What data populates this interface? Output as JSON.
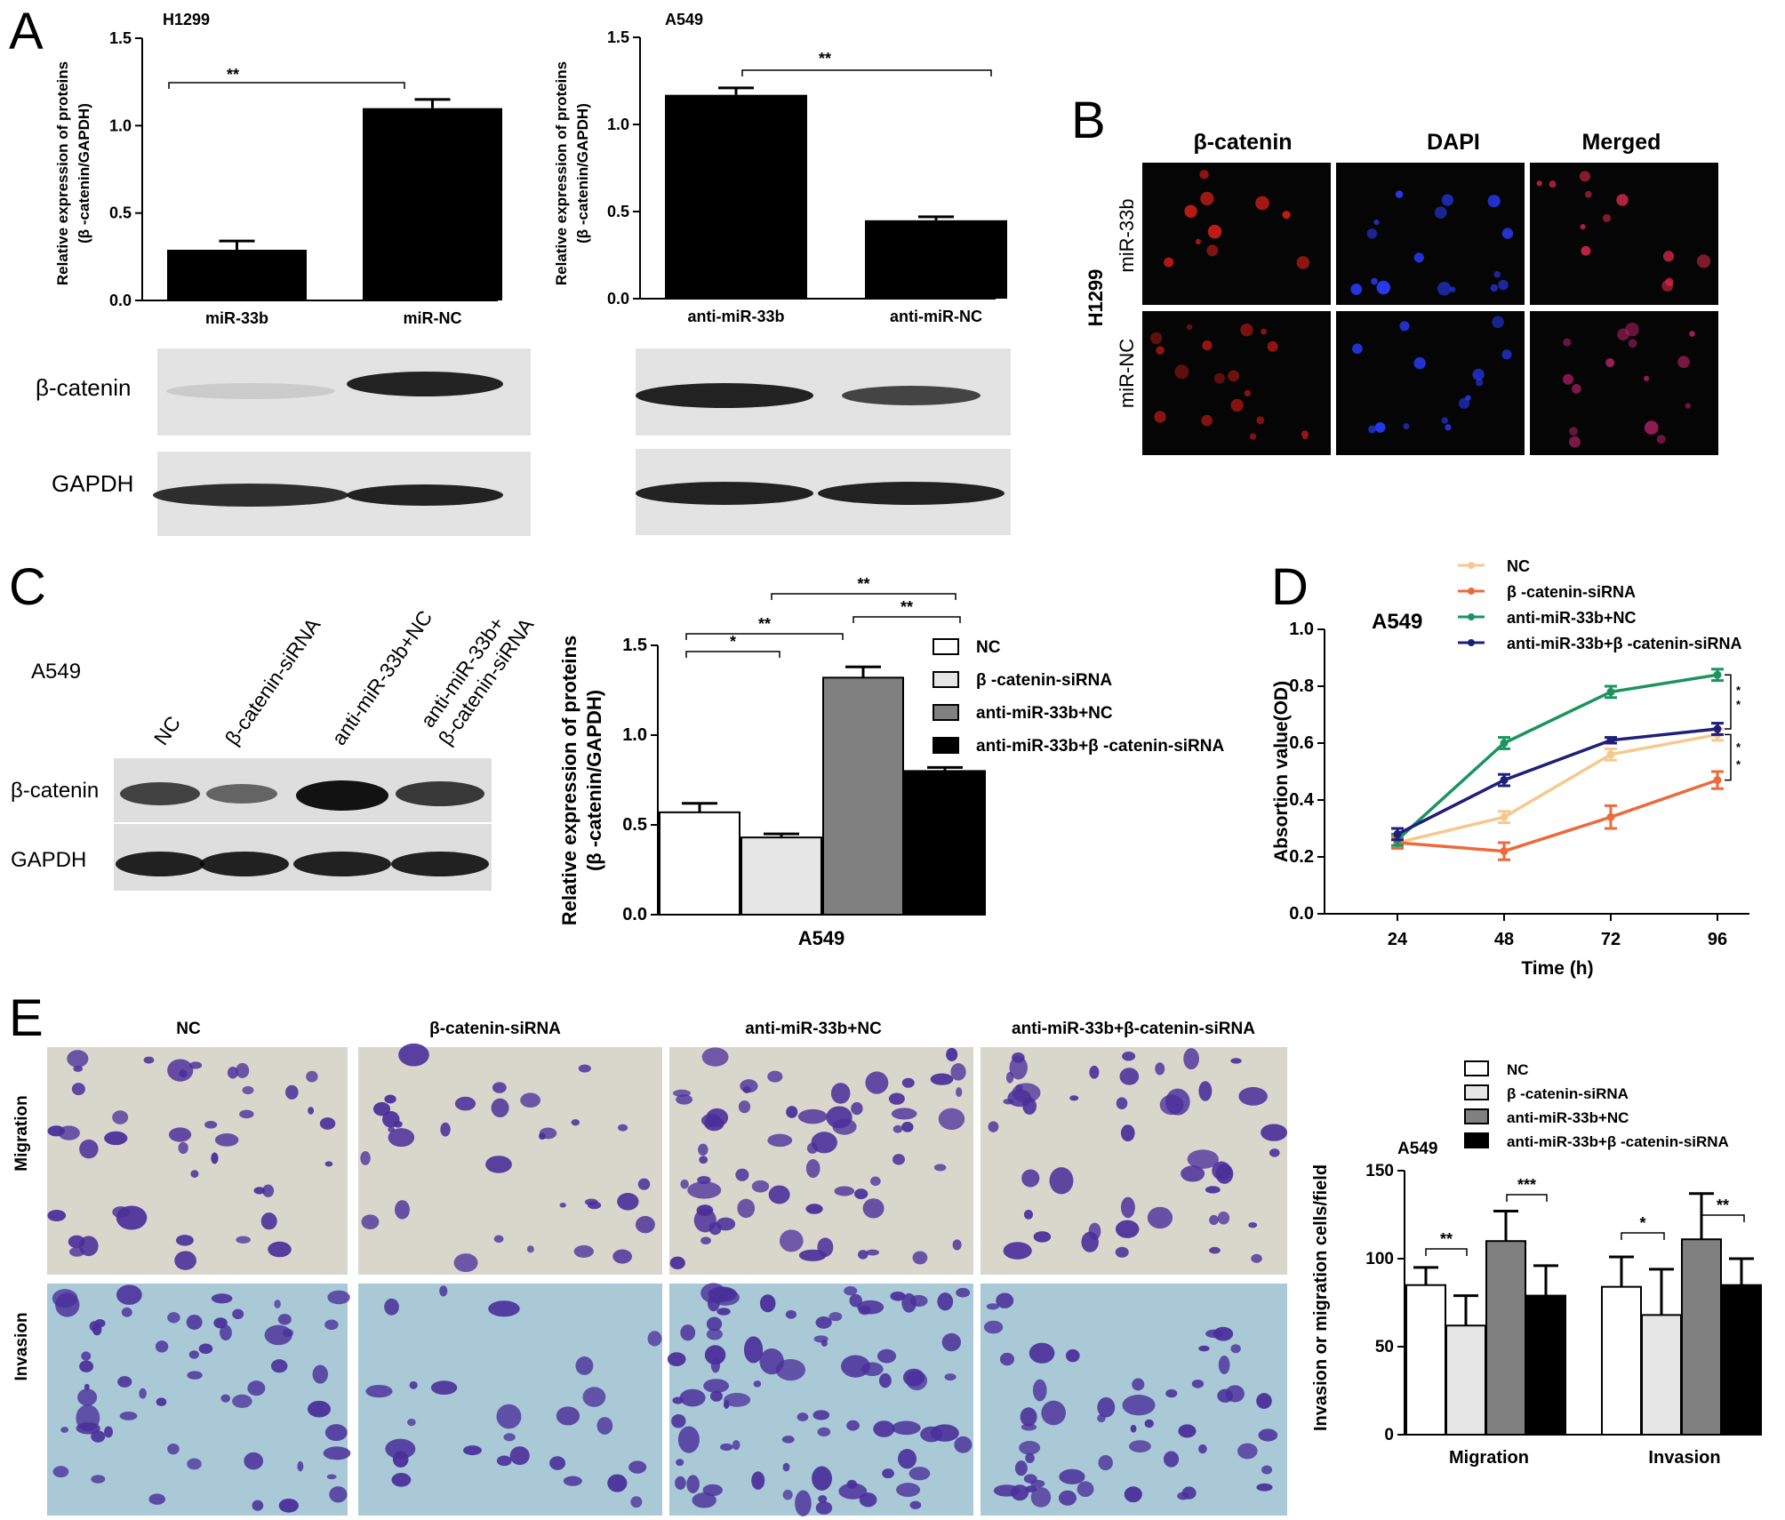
{
  "panels": {
    "A": "A",
    "B": "B",
    "C": "C",
    "D": "D",
    "E": "E"
  },
  "panel_a": {
    "h1299": {
      "cell_line": "H1299",
      "ylabel_1": "Relative expression of proteins",
      "ylabel_2": "(β -catenin/GAPDH)",
      "sig": "**",
      "blot_labels": [
        "β-catenin",
        "GAPDH"
      ]
    },
    "a549": {
      "cell_line": "A549",
      "ylabel_1": "Relative expression of proteins",
      "ylabel_2": "(β -catenin/GAPDH)",
      "sig": "**"
    }
  },
  "panel_b": {
    "cols": [
      "β-catenin",
      "DAPI",
      "Merged"
    ],
    "cell_line": "H1299",
    "rows": [
      "miR-33b",
      "miR-NC"
    ]
  },
  "panel_c": {
    "cell_line": "A549",
    "lanes": [
      "NC",
      "β-catenin-siRNA",
      "anti-miR-33b+NC",
      "anti-miR-33b+",
      "β-catenin-siRNA"
    ],
    "blot_labels": [
      "β-catenin",
      "GAPDH"
    ]
  },
  "panel_d": {
    "cell_line": "A549"
  },
  "panel_e": {
    "cols": [
      "NC",
      "β-catenin-siRNA",
      "anti-miR-33b+NC",
      "anti-miR-33b+β-catenin-siRNA"
    ],
    "rows": [
      "Migration",
      "Invasion"
    ],
    "cell_line": "A549"
  },
  "colors": {
    "white_bar": "#ffffff",
    "light_bar": "#e6e6e6",
    "grey_bar": "#808080",
    "black_bar": "#000000",
    "nc_line": "#f5c98e",
    "sirna_line": "#ec6a3c",
    "anti_nc_line": "#1b9460",
    "anti_sirna_line": "#1f1f7a"
  },
  "chart_data": [
    {
      "id": "a_h1299",
      "type": "bar",
      "title": "H1299",
      "categories": [
        "miR-33b",
        "miR-NC"
      ],
      "values": [
        0.29,
        1.1
      ],
      "errors": [
        0.05,
        0.05
      ],
      "ylabel": "Relative expression of proteins (β -catenin/GAPDH)",
      "ylim": [
        0,
        1.5
      ],
      "yticks": [
        "0.0",
        "0.5",
        "1.0",
        "1.5"
      ],
      "annotations": [
        {
          "text": "**",
          "between": [
            "miR-33b",
            "miR-NC"
          ]
        }
      ]
    },
    {
      "id": "a_a549",
      "type": "bar",
      "title": "A549",
      "categories": [
        "anti-miR-33b",
        "anti-miR-NC"
      ],
      "values": [
        1.17,
        0.45
      ],
      "errors": [
        0.04,
        0.02
      ],
      "ylabel": "Relative expression of proteins (β -catenin/GAPDH)",
      "ylim": [
        0,
        1.5
      ],
      "yticks": [
        "0.0",
        "0.5",
        "1.0",
        "1.5"
      ],
      "annotations": [
        {
          "text": "**",
          "between": [
            "anti-miR-33b",
            "anti-miR-NC"
          ]
        }
      ]
    },
    {
      "id": "c_bar",
      "type": "bar",
      "categories": [
        "A549"
      ],
      "series": [
        {
          "name": "NC",
          "values": [
            0.57
          ],
          "errors": [
            0.05
          ],
          "color": "#ffffff"
        },
        {
          "name": "β -catenin-siRNA",
          "values": [
            0.43
          ],
          "errors": [
            0.02
          ],
          "color": "#e6e6e6"
        },
        {
          "name": "anti-miR-33b+NC",
          "values": [
            1.32
          ],
          "errors": [
            0.06
          ],
          "color": "#808080"
        },
        {
          "name": "anti-miR-33b+β -catenin-siRNA",
          "values": [
            0.8
          ],
          "errors": [
            0.02
          ],
          "color": "#000000"
        }
      ],
      "ylabel": "Relative expression of proteins (β -catenin/GAPDH)",
      "ylim": [
        0,
        1.5
      ],
      "yticks": [
        "0.0",
        "0.5",
        "1.0",
        "1.5"
      ],
      "legend": "top-right",
      "annotations": [
        {
          "text": "*",
          "between": [
            "NC",
            "β -catenin-siRNA"
          ]
        },
        {
          "text": "**",
          "between": [
            "NC",
            "anti-miR-33b+NC"
          ]
        },
        {
          "text": "**",
          "between": [
            "β -catenin-siRNA",
            "anti-miR-33b+β -catenin-siRNA"
          ]
        },
        {
          "text": "**",
          "between": [
            "anti-miR-33b+NC",
            "anti-miR-33b+β -catenin-siRNA"
          ]
        }
      ]
    },
    {
      "id": "d_line",
      "type": "line",
      "title": "A549",
      "x": [
        24,
        48,
        72,
        96
      ],
      "series": [
        {
          "name": "NC",
          "values": [
            0.25,
            0.34,
            0.56,
            0.63
          ],
          "errors": [
            0.02,
            0.02,
            0.02,
            0.02
          ],
          "color": "#f5c98e"
        },
        {
          "name": "β -catenin-siRNA",
          "values": [
            0.25,
            0.22,
            0.34,
            0.47
          ],
          "errors": [
            0.02,
            0.03,
            0.04,
            0.03
          ],
          "color": "#ec6a3c"
        },
        {
          "name": "anti-miR-33b+NC",
          "values": [
            0.26,
            0.6,
            0.78,
            0.84
          ],
          "errors": [
            0.02,
            0.02,
            0.02,
            0.02
          ],
          "color": "#1b9460"
        },
        {
          "name": "anti-miR-33b+β -catenin-siRNA",
          "values": [
            0.28,
            0.47,
            0.61,
            0.65
          ],
          "errors": [
            0.02,
            0.02,
            0.01,
            0.02
          ],
          "color": "#1f1f7a"
        }
      ],
      "xlabel": "Time (h)",
      "ylabel": "Absortion value(OD)",
      "ylim": [
        0,
        1.0
      ],
      "yticks": [
        "0.0",
        "0.2",
        "0.4",
        "0.6",
        "0.8",
        "1.0"
      ],
      "xticks": [
        "24",
        "48",
        "72",
        "96"
      ],
      "legend": "top",
      "annotations": [
        {
          "text": "*"
        },
        {
          "text": "*"
        },
        {
          "text": "*"
        },
        {
          "text": "*"
        }
      ]
    },
    {
      "id": "e_bar",
      "type": "bar",
      "title": "A549",
      "categories": [
        "Migration",
        "Invasion"
      ],
      "series": [
        {
          "name": "NC",
          "values": [
            85,
            84
          ],
          "errors": [
            10,
            17
          ],
          "color": "#ffffff"
        },
        {
          "name": "β -catenin-siRNA",
          "values": [
            62,
            68
          ],
          "errors": [
            17,
            26
          ],
          "color": "#e6e6e6"
        },
        {
          "name": "anti-miR-33b+NC",
          "values": [
            110,
            111
          ],
          "errors": [
            17,
            26
          ],
          "color": "#808080"
        },
        {
          "name": "anti-miR-33b+β -catenin-siRNA",
          "values": [
            79,
            85
          ],
          "errors": [
            17,
            15
          ],
          "color": "#000000"
        }
      ],
      "ylabel": "Invasion or migration cells/field",
      "ylim": [
        0,
        150
      ],
      "yticks": [
        "0",
        "50",
        "100",
        "150"
      ],
      "legend": "top",
      "annotations": [
        {
          "text": "**",
          "group": "Migration",
          "between": [
            "NC",
            "β -catenin-siRNA"
          ]
        },
        {
          "text": "***",
          "group": "Migration",
          "between": [
            "anti-miR-33b+NC",
            "anti-miR-33b+β -catenin-siRNA"
          ]
        },
        {
          "text": "*",
          "group": "Invasion",
          "between": [
            "NC",
            "β -catenin-siRNA"
          ]
        },
        {
          "text": "**",
          "group": "Invasion",
          "between": [
            "anti-miR-33b+NC",
            "anti-miR-33b+β -catenin-siRNA"
          ]
        }
      ]
    }
  ]
}
